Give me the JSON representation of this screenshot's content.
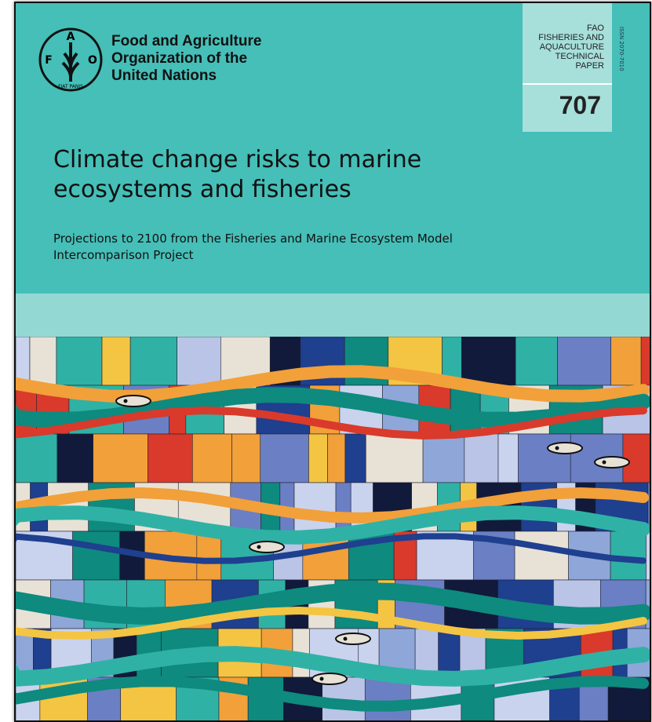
{
  "header": {
    "organization": [
      "Food and Agriculture",
      "Organization of the",
      "United Nations"
    ],
    "logo": {
      "letters": [
        "F",
        "A",
        "O"
      ],
      "motto": "FIAT PANIS"
    }
  },
  "series": {
    "lines": [
      "FAO",
      "FISHERIES AND",
      "AQUACULTURE",
      "TECHNICAL",
      "PAPER"
    ],
    "number": "707",
    "issn": "ISSN 2070-7010"
  },
  "title": [
    "Climate change risks to marine",
    "ecosystems and fisheries"
  ],
  "subtitle": [
    "Projections to 2100 from the Fisheries and Marine Ecosystem Model",
    "Intercomparison Project"
  ]
}
